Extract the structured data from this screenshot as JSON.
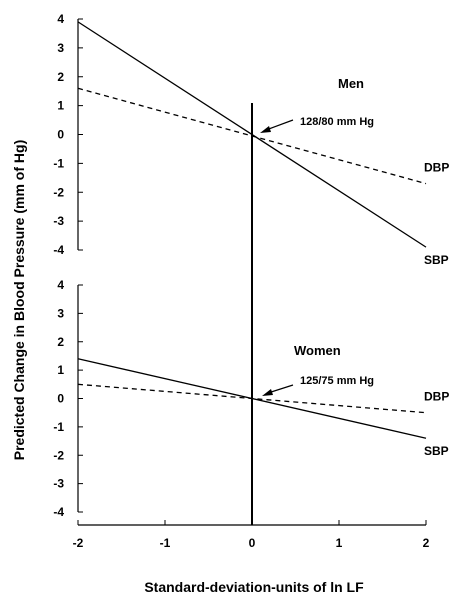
{
  "chart_data": {
    "type": "line",
    "xlabel": "Standard-deviation-units of ln LF",
    "ylabel": "Predicted Change in Blood Pressure (mm of Hg)",
    "x_ticks": [
      "-2",
      "-1",
      "0",
      "1",
      "2"
    ],
    "xlim": [
      -2,
      2
    ],
    "panels": [
      {
        "label": "Men",
        "annotation": "128/80 mm Hg",
        "ylim": [
          -4,
          4
        ],
        "y_ticks": [
          "4",
          "3",
          "2",
          "1",
          "0",
          "-1",
          "-2",
          "-3",
          "-4"
        ],
        "series": [
          {
            "name": "SBP",
            "style": "solid",
            "x": [
              -2,
              2
            ],
            "y": [
              3.9,
              -3.9
            ]
          },
          {
            "name": "DBP",
            "style": "dashed",
            "x": [
              -2,
              2
            ],
            "y": [
              1.6,
              -1.7
            ]
          }
        ]
      },
      {
        "label": "Women",
        "annotation": "125/75 mm Hg",
        "ylim": [
          -4,
          4
        ],
        "y_ticks": [
          "4",
          "3",
          "2",
          "1",
          "0",
          "-1",
          "-2",
          "-3",
          "-4"
        ],
        "series": [
          {
            "name": "SBP",
            "style": "solid",
            "x": [
              -2,
              2
            ],
            "y": [
              1.4,
              -1.4
            ]
          },
          {
            "name": "DBP",
            "style": "dashed",
            "x": [
              -2,
              2
            ],
            "y": [
              0.5,
              -0.5
            ]
          }
        ]
      }
    ],
    "colors": {
      "line": "#000000"
    }
  }
}
